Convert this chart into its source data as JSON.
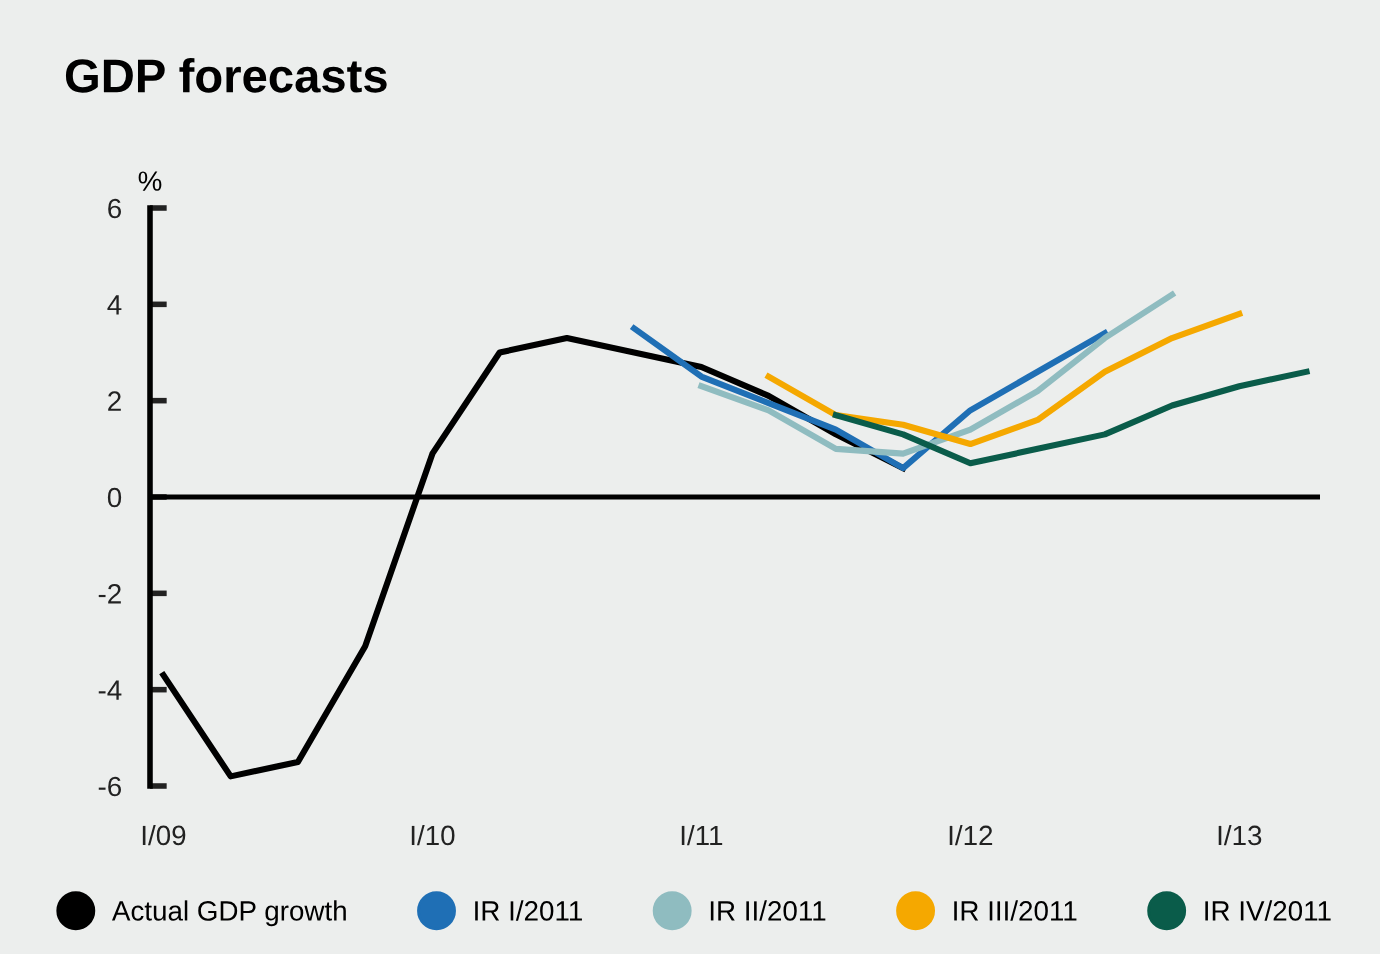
{
  "chart_data": {
    "type": "line",
    "title": "GDP forecasts",
    "ylabel": "%",
    "categories": [
      "I/09",
      null,
      null,
      null,
      "I/10",
      null,
      null,
      null,
      "I/11",
      null,
      null,
      null,
      "I/12",
      null,
      null,
      null,
      "I/13",
      null
    ],
    "ylim": [
      -6,
      6
    ],
    "yticks": [
      -6,
      -4,
      -2,
      0,
      2,
      4,
      6
    ],
    "grid": false,
    "legend": "bottom",
    "ref_lines": [
      {
        "axis": "y",
        "value": 0,
        "color": "#000000"
      }
    ],
    "series": [
      {
        "name": "Actual GDP growth",
        "color": "#000000",
        "values": [
          -3.7,
          -5.8,
          -5.5,
          -3.1,
          0.9,
          3.0,
          3.3,
          3.0,
          2.7,
          2.1,
          1.3,
          0.6,
          null,
          null,
          null,
          null,
          null,
          null
        ]
      },
      {
        "name": "IR I/2011",
        "color": "#1f6fb5",
        "values": [
          null,
          null,
          null,
          null,
          null,
          null,
          null,
          3.5,
          2.5,
          1.95,
          1.4,
          0.6,
          1.8,
          2.6,
          3.4,
          null,
          null,
          null
        ]
      },
      {
        "name": "IR II/2011",
        "color": "#8fbcc0",
        "values": [
          null,
          null,
          null,
          null,
          null,
          null,
          null,
          null,
          2.3,
          1.8,
          1.0,
          0.9,
          1.4,
          2.2,
          3.3,
          4.2,
          null,
          null
        ]
      },
      {
        "name": "IR III/2011",
        "color": "#f5a800",
        "values": [
          null,
          null,
          null,
          null,
          null,
          null,
          null,
          null,
          null,
          2.5,
          1.7,
          1.5,
          1.1,
          1.6,
          2.6,
          3.3,
          3.8,
          null
        ]
      },
      {
        "name": "IR IV/2011",
        "color": "#0a5c4a",
        "values": [
          null,
          null,
          null,
          null,
          null,
          null,
          null,
          null,
          null,
          null,
          1.7,
          1.3,
          0.7,
          1.0,
          1.3,
          1.9,
          2.3,
          2.6
        ]
      }
    ]
  }
}
